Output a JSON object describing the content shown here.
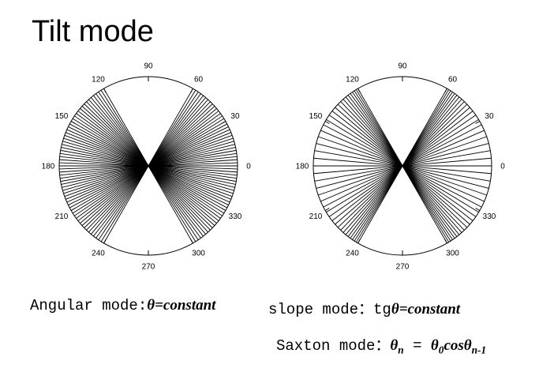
{
  "title": "Tilt mode",
  "plots": [
    {
      "id": "angular",
      "mode": "angular",
      "tick_labels": [
        "0",
        "30",
        "60",
        "90",
        "120",
        "150",
        "180",
        "210",
        "240",
        "270",
        "300",
        "330"
      ],
      "ray_angle_range_deg": [
        -60,
        60
      ],
      "ray_count": 61,
      "line_color": "#000000"
    },
    {
      "id": "slope",
      "mode": "slope",
      "tick_labels": [
        "0",
        "30",
        "60",
        "90",
        "120",
        "150",
        "180",
        "210",
        "240",
        "270",
        "300",
        "330"
      ],
      "ray_angle_range_deg": [
        -60,
        60
      ],
      "ray_count": 41,
      "line_color": "#000000"
    }
  ],
  "captions": {
    "angular": {
      "prefix": "Angular mode:",
      "expr": "θ=constant"
    },
    "slope": {
      "prefix": "slope mode：tg",
      "expr": "θ=constant"
    },
    "saxton": {
      "prefix": "Saxton mode：",
      "lhs": "θ",
      "lhs_sub": "n",
      "eq": " = ",
      "rhs1": "θ",
      "rhs1_sub": "0",
      "rhs2": "cosθ",
      "rhs2_sub": "n-1"
    }
  }
}
